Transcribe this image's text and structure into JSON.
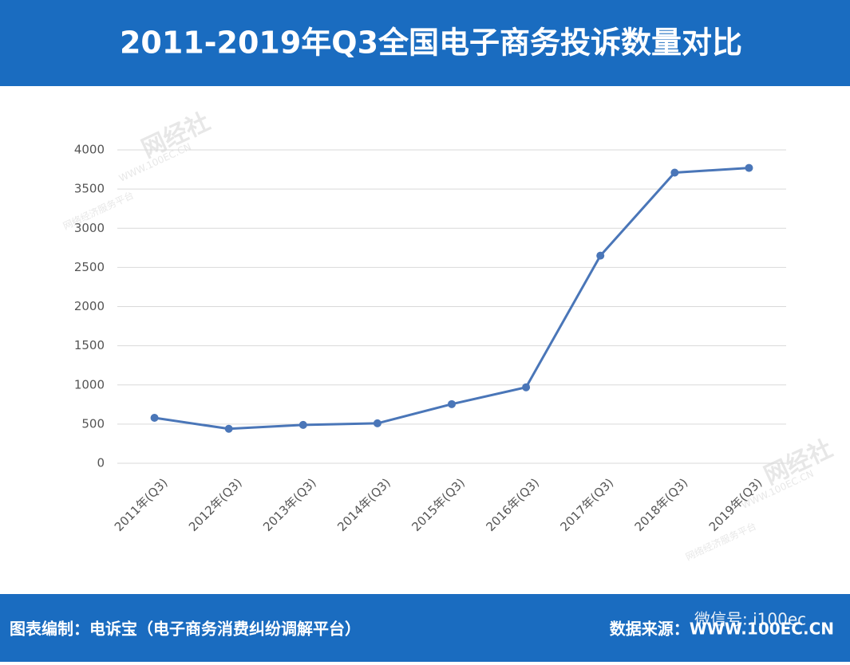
{
  "chart_data": {
    "type": "line",
    "title": "2011-2019年Q3全国电子商务投诉数量对比",
    "categories": [
      "2011年(Q3)",
      "2012年(Q3)",
      "2013年(Q3)",
      "2014年(Q3)",
      "2015年(Q3)",
      "2016年(Q3)",
      "2017年(Q3)",
      "2018年(Q3)",
      "2019年(Q3)"
    ],
    "series": [
      {
        "name": "投诉数量",
        "color": "#4a76b8",
        "values": [
          580,
          440,
          490,
          510,
          755,
          970,
          2650,
          3710,
          3770
        ]
      }
    ],
    "ylim": [
      0,
      4000
    ],
    "yticks": [
      0,
      500,
      1000,
      1500,
      2000,
      2500,
      3000,
      3500,
      4000
    ],
    "grid": true,
    "footer_left": "图表编制：电诉宝（电子商务消费纠纷调解平台）",
    "footer_right": "数据来源：WWW.100EC.CN",
    "footer_watermark": "微信号: i100ec",
    "watermark": {
      "brand": "网经社",
      "site": "WWW.100EC.CN",
      "slogan": "网络经济服务平台"
    }
  }
}
